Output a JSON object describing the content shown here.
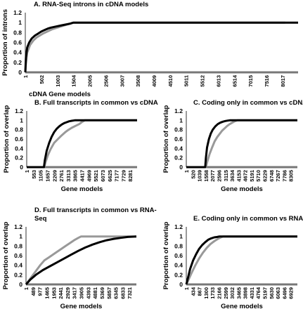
{
  "chart_data": [
    {
      "type": "line",
      "title": "A. RNA-Seq introns in cDNA models",
      "xlabel": "cDNA Gene models",
      "ylabel": "Proportion of introns",
      "ylim": [
        0,
        1.2
      ],
      "yticks": [
        "0",
        "0.2",
        "0.4",
        "0.6",
        "0.8",
        "1",
        "1.2"
      ],
      "xmax": 8500,
      "xticks": [
        "1",
        "502",
        "1003",
        "1504",
        "2005",
        "2506",
        "3007",
        "3508",
        "4009",
        "4510",
        "5011",
        "5512",
        "6013",
        "6514",
        "7015",
        "7516",
        "8017"
      ],
      "series": [
        {
          "color": "#000000",
          "x": [
            1,
            20,
            60,
            120,
            200,
            300,
            400,
            500,
            600,
            700,
            800,
            950,
            1100,
            1250,
            1400,
            1500,
            1550,
            8500
          ],
          "y": [
            0,
            0.3,
            0.5,
            0.6,
            0.68,
            0.74,
            0.78,
            0.82,
            0.85,
            0.88,
            0.9,
            0.92,
            0.94,
            0.96,
            0.98,
            1.0,
            1.0,
            1.0
          ]
        },
        {
          "color": "#999999",
          "x": [
            1,
            20,
            60,
            150,
            250,
            350,
            450,
            550,
            650,
            750,
            850,
            1000,
            1150,
            1300,
            1450,
            1500,
            8100
          ],
          "y": [
            0,
            0.18,
            0.4,
            0.55,
            0.64,
            0.7,
            0.74,
            0.78,
            0.81,
            0.84,
            0.87,
            0.9,
            0.93,
            0.96,
            0.99,
            1.0,
            1.0
          ]
        }
      ]
    },
    {
      "type": "line",
      "title": "B. Full transcripts in common vs cDNA",
      "xlabel": "Gene models",
      "ylabel": "Proportion of overlap",
      "ylim": [
        0,
        1.2
      ],
      "yticks": [
        "0",
        "0.2",
        "0.4",
        "0.6",
        "0.8",
        "1",
        "1.2"
      ],
      "xmax": 8833,
      "xticks": [
        "1",
        "553",
        "1105",
        "1657",
        "2209",
        "2761",
        "3313",
        "3865",
        "4417",
        "4969",
        "5521",
        "6073",
        "6625",
        "7177",
        "7729",
        "8281"
      ],
      "series": [
        {
          "color": "#000000",
          "x": [
            1,
            1380,
            1450,
            1600,
            1800,
            2000,
            2200,
            2400,
            2600,
            2800,
            3000,
            3200,
            3400,
            3600,
            3850,
            8833
          ],
          "y": [
            0,
            0,
            0.15,
            0.35,
            0.52,
            0.65,
            0.75,
            0.82,
            0.87,
            0.91,
            0.94,
            0.96,
            0.98,
            0.99,
            1.0,
            1.0
          ]
        },
        {
          "color": "#999999",
          "x": [
            1,
            1400,
            1500,
            1700,
            1900,
            2200,
            2500,
            2800,
            3100,
            3300,
            3600,
            3900,
            4200,
            4400,
            4650,
            8833
          ],
          "y": [
            0,
            0,
            0.1,
            0.26,
            0.38,
            0.52,
            0.6,
            0.68,
            0.75,
            0.79,
            0.84,
            0.88,
            0.92,
            0.96,
            1.0,
            1.0
          ]
        }
      ]
    },
    {
      "type": "line",
      "title": "C. Coding only in common vs cDNA",
      "xlabel": "Gene models",
      "ylabel": "Proportion of overlap",
      "ylim": [
        0,
        1.2
      ],
      "yticks": [
        "0",
        "0.2",
        "0.4",
        "0.6",
        "0.8",
        "1",
        "1.2"
      ],
      "xmax": 8825,
      "xticks": [
        "1",
        "520",
        "1039",
        "1558",
        "2077",
        "2596",
        "3115",
        "3634",
        "4153",
        "4672",
        "5191",
        "5710",
        "6229",
        "6748",
        "7267",
        "7786",
        "8305"
      ],
      "series": [
        {
          "color": "#000000",
          "x": [
            1,
            1500,
            1560,
            1650,
            1800,
            1950,
            2100,
            2300,
            2500,
            2700,
            2900,
            3100,
            3300,
            3450,
            8825
          ],
          "y": [
            0,
            0,
            0.2,
            0.42,
            0.6,
            0.72,
            0.8,
            0.87,
            0.92,
            0.95,
            0.97,
            0.985,
            0.995,
            1.0,
            1.0
          ]
        },
        {
          "color": "#999999",
          "x": [
            1,
            1560,
            1650,
            1850,
            2050,
            2250,
            2450,
            2650,
            2850,
            3050,
            3250,
            3450,
            3650,
            3850,
            4050,
            8825
          ],
          "y": [
            0,
            0,
            0.1,
            0.28,
            0.42,
            0.55,
            0.64,
            0.71,
            0.78,
            0.83,
            0.88,
            0.92,
            0.95,
            0.98,
            1.0,
            1.0
          ]
        }
      ]
    },
    {
      "type": "line",
      "title": "D. Full transcripts in common vs RNA-Seq",
      "xlabel": "Gene models",
      "ylabel": "Proportion of overlap",
      "ylim": [
        0,
        1.2
      ],
      "yticks": [
        "0",
        "0.2",
        "0.4",
        "0.6",
        "0.8",
        "1",
        "1.2"
      ],
      "xmax": 7809,
      "xticks": [
        "1",
        "489",
        "977",
        "1465",
        "1953",
        "2441",
        "2929",
        "3417",
        "3905",
        "4393",
        "4881",
        "5369",
        "5857",
        "6345",
        "6833",
        "7321"
      ],
      "series": [
        {
          "color": "#000000",
          "x": [
            1,
            300,
            700,
            1200,
            1700,
            2200,
            2700,
            3200,
            3700,
            4200,
            4700,
            5200,
            5700,
            6200,
            6700,
            7200,
            7809
          ],
          "y": [
            0,
            0.1,
            0.2,
            0.3,
            0.38,
            0.46,
            0.54,
            0.62,
            0.7,
            0.77,
            0.83,
            0.88,
            0.92,
            0.95,
            0.97,
            0.99,
            1.0
          ]
        },
        {
          "color": "#999999",
          "x": [
            1,
            300,
            700,
            1000,
            1300,
            1600,
            1900,
            2200,
            2500,
            2800,
            3100,
            3400,
            3700,
            3900,
            7809
          ],
          "y": [
            0,
            0.12,
            0.28,
            0.4,
            0.5,
            0.56,
            0.62,
            0.68,
            0.74,
            0.8,
            0.86,
            0.92,
            0.97,
            1.0,
            1.0
          ]
        }
      ]
    },
    {
      "type": "line",
      "title": "E. Coding only in common vs RNA-Seq",
      "xlabel": "Gene models",
      "ylabel": "Proportion of overlap",
      "ylim": [
        0,
        1.2
      ],
      "yticks": [
        "0",
        "0.2",
        "0.4",
        "0.6",
        "0.8",
        "1",
        "1.2"
      ],
      "xmax": 7362,
      "xticks": [
        "1",
        "434",
        "867",
        "1300",
        "1733",
        "2166",
        "2599",
        "3032",
        "3465",
        "3898",
        "4331",
        "4764",
        "5197",
        "5630",
        "6063",
        "6496",
        "6929"
      ],
      "series": [
        {
          "color": "#000000",
          "x": [
            1,
            100,
            250,
            450,
            650,
            850,
            1050,
            1250,
            1450,
            1650,
            1850,
            2050,
            2200,
            7362
          ],
          "y": [
            0,
            0.12,
            0.32,
            0.5,
            0.63,
            0.74,
            0.82,
            0.88,
            0.93,
            0.96,
            0.98,
            0.99,
            1.0,
            1.0
          ]
        },
        {
          "color": "#999999",
          "x": [
            1,
            150,
            350,
            600,
            850,
            1100,
            1350,
            1600,
            1850,
            2100,
            2350,
            2450,
            7362
          ],
          "y": [
            0,
            0.1,
            0.24,
            0.4,
            0.54,
            0.66,
            0.76,
            0.84,
            0.9,
            0.95,
            0.99,
            1.0,
            1.0
          ]
        }
      ]
    }
  ]
}
